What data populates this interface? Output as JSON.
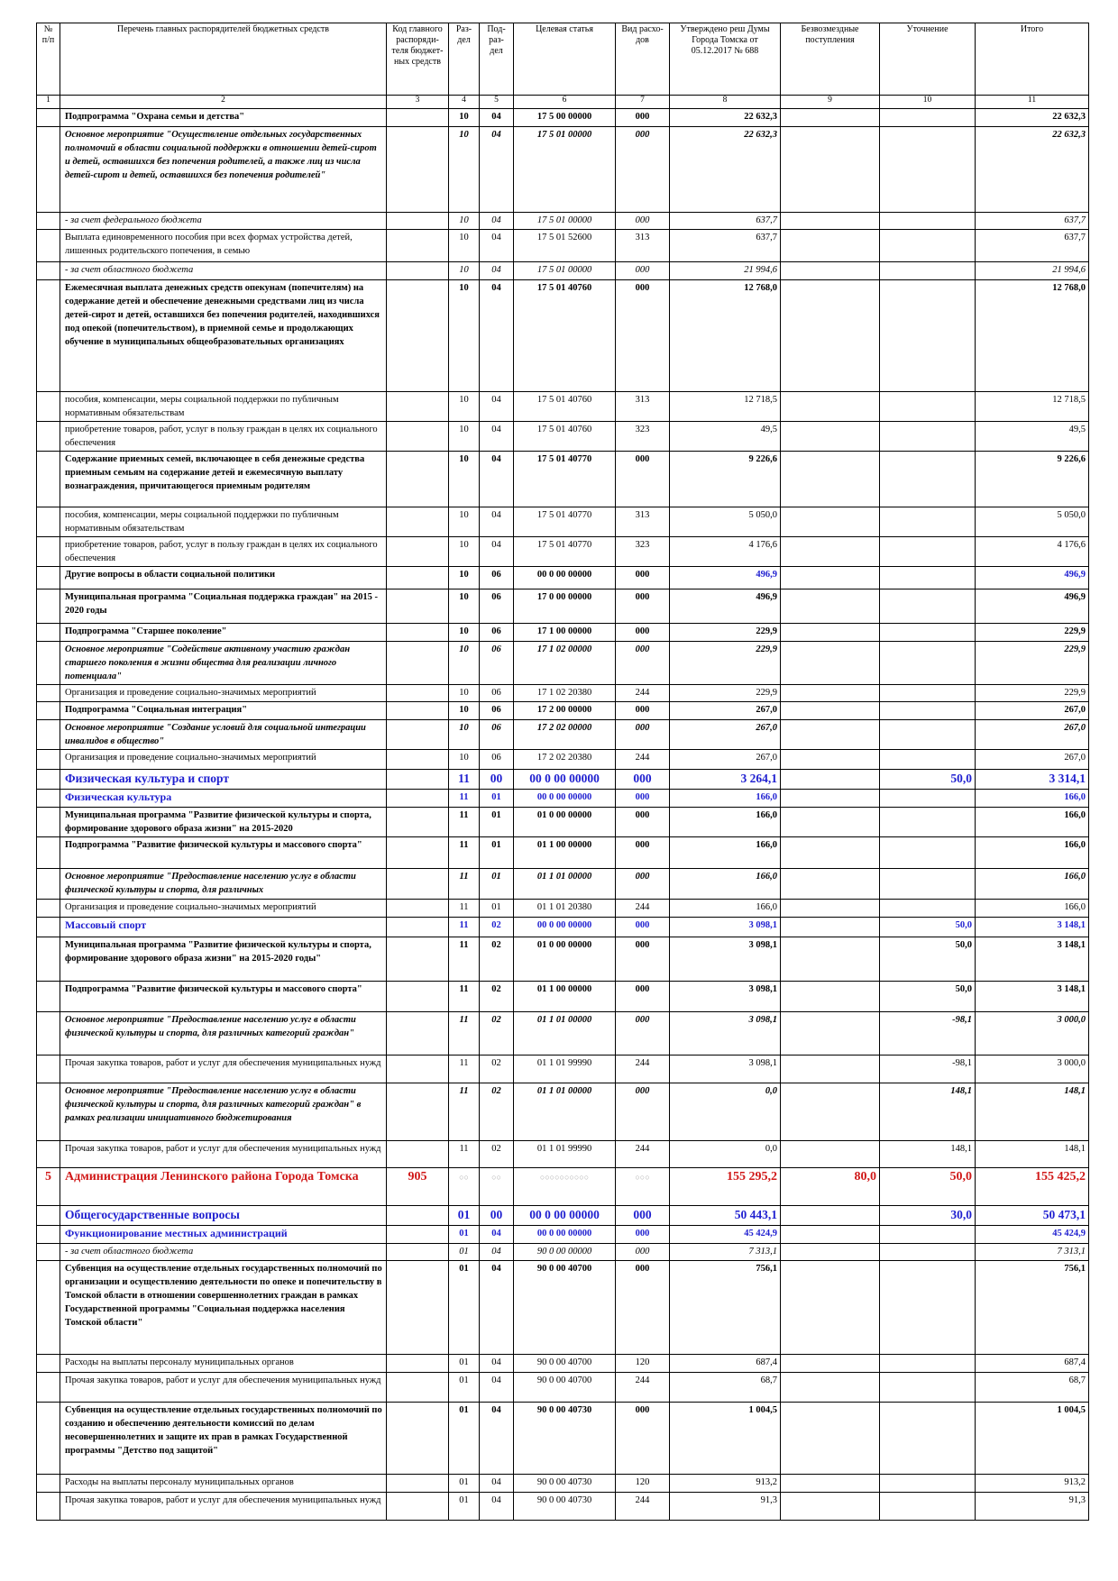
{
  "table": {
    "header": [
      "№ п/п",
      "Перечень главных распорядителей бюджетных средств",
      "Код главного распоряди-теля бюджет-ных средств",
      "Раз-дел",
      "Под-раз-дел",
      "Целевая статья",
      "Вид расхо-дов",
      "Утверждено реш Думы Города Томска от 05.12.2017 № 688",
      "Безвозмездные поступления",
      "Уточнение",
      "Итого"
    ],
    "numbers": [
      "1",
      "2",
      "3",
      "4",
      "5",
      "6",
      "7",
      "8",
      "9",
      "10",
      "11"
    ],
    "rows": [
      {
        "style": "b",
        "cells": [
          null,
          "Подпрограмма \"Охрана семьи и детства\"",
          null,
          "10",
          "04",
          "17 5 00 00000",
          "000",
          "22 632,3",
          null,
          null,
          "22 632,3"
        ]
      },
      {
        "style": "bi",
        "cells": [
          null,
          "Основное мероприятие \"Осуществление отдельных государственных полномочий в области социальной поддержки в отношении детей-сирот и детей, оставшихся без попечения родителей, а также лиц из числа детей-сирот и детей, оставшихся без попечения родителей\"",
          null,
          "10",
          "04",
          "17 5 01 00000",
          "000",
          "22 632,3",
          null,
          null,
          "22 632,3"
        ]
      },
      {
        "style": "i",
        "cells": [
          null,
          "- за счет федерального бюджета",
          null,
          "10",
          "04",
          "17 5 01 00000",
          "000",
          "637,7",
          null,
          null,
          "637,7"
        ]
      },
      {
        "style": "n",
        "cells": [
          null,
          "Выплата единовременного пособия при всех формах устройства детей, лишенных родительского попечения, в семью",
          null,
          "10",
          "04",
          "17 5 01 52600",
          "313",
          "637,7",
          null,
          null,
          "637,7"
        ]
      },
      {
        "style": "i",
        "cells": [
          null,
          "- за счет областного бюджета",
          null,
          "10",
          "04",
          "17 5 01 00000",
          "000",
          "21 994,6",
          null,
          null,
          "21 994,6"
        ]
      },
      {
        "style": "b",
        "cells": [
          null,
          "Ежемесячная выплата денежных средств опекунам (попечителям) на содержание детей и обеспечение денежными средствами лиц из числа детей-сирот и детей, оставшихся без попечения родителей, находившихся под опекой (попечительством), в приемной семье и продолжающих обучение в муниципальных общеобразовательных организациях",
          null,
          "10",
          "04",
          "17 5 01 40760",
          "000",
          "12 768,0",
          null,
          null,
          "12 768,0"
        ]
      },
      {
        "style": "n",
        "cells": [
          null,
          "пособия, компенсации, меры социальной поддержки по публичным нормативным обязательствам",
          null,
          "10",
          "04",
          "17 5 01 40760",
          "313",
          "12 718,5",
          null,
          null,
          "12 718,5"
        ]
      },
      {
        "style": "n",
        "cells": [
          null,
          "приобретение товаров, работ, услуг в пользу граждан в целях их социального обеспечения",
          null,
          "10",
          "04",
          "17 5 01 40760",
          "323",
          "49,5",
          null,
          null,
          "49,5"
        ]
      },
      {
        "style": "b",
        "cells": [
          null,
          "Содержание приемных семей, включающее в себя денежные средства приемным семьям на содержание детей и ежемесячную выплату вознаграждения, причитающегося приемным родителям",
          null,
          "10",
          "04",
          "17 5 01 40770",
          "000",
          "9 226,6",
          null,
          null,
          "9 226,6"
        ]
      },
      {
        "style": "n",
        "cells": [
          null,
          "пособия, компенсации, меры социальной поддержки по публичным нормативным обязательствам",
          null,
          "10",
          "04",
          "17 5 01 40770",
          "313",
          "5 050,0",
          null,
          null,
          "5 050,0"
        ]
      },
      {
        "style": "n",
        "cells": [
          null,
          "приобретение товаров, работ, услуг в пользу граждан в целях их социального обеспечения",
          null,
          "10",
          "04",
          "17 5 01 40770",
          "323",
          "4 176,6",
          null,
          null,
          "4 176,6"
        ]
      },
      {
        "style": "bv",
        "cells": [
          null,
          "Другие вопросы в области социальной политики",
          null,
          "10",
          "06",
          "00 0 00 00000",
          "000",
          "496,9",
          null,
          null,
          "496,9"
        ]
      },
      {
        "style": "b",
        "cells": [
          null,
          "Муниципальная программа \"Социальная поддержка граждан\" на 2015 - 2020 годы",
          null,
          "10",
          "06",
          "17 0 00 00000",
          "000",
          "496,9",
          null,
          null,
          "496,9"
        ]
      },
      {
        "style": "b",
        "cells": [
          null,
          "Подпрограмма \"Старшее поколение\"",
          null,
          "10",
          "06",
          "17 1 00 00000",
          "000",
          "229,9",
          null,
          null,
          "229,9"
        ]
      },
      {
        "style": "bi",
        "cells": [
          null,
          "Основное мероприятие \"Содействие активному участию граждан старшего поколения в жизни общества для реализации личного потенциала\"",
          null,
          "10",
          "06",
          "17 1 02 00000",
          "000",
          "229,9",
          null,
          null,
          "229,9"
        ]
      },
      {
        "style": "n",
        "cells": [
          null,
          "Организация и проведение социально-значимых мероприятий",
          null,
          "10",
          "06",
          "17 1 02 20380",
          "244",
          "229,9",
          null,
          null,
          "229,9"
        ]
      },
      {
        "style": "b",
        "cells": [
          null,
          "Подпрограмма \"Социальная интеграция\"",
          null,
          "10",
          "06",
          "17 2 00 00000",
          "000",
          "267,0",
          null,
          null,
          "267,0"
        ]
      },
      {
        "style": "bi",
        "cells": [
          null,
          "Основное мероприятие \"Создание условий для социальной интеграции инвалидов в общество\"",
          null,
          "10",
          "06",
          "17 2 02 00000",
          "000",
          "267,0",
          null,
          null,
          "267,0"
        ]
      },
      {
        "style": "n",
        "cells": [
          null,
          "Организация и проведение социально-значимых мероприятий",
          null,
          "10",
          "06",
          "17 2 02 20380",
          "244",
          "267,0",
          null,
          null,
          "267,0"
        ]
      },
      {
        "style": "blue-big",
        "cells": [
          null,
          "Физическая культура и спорт",
          null,
          "11",
          "00",
          "00 0 00 00000",
          "000",
          "3 264,1",
          null,
          "50,0",
          "3 314,1"
        ]
      },
      {
        "style": "blue",
        "cells": [
          null,
          "Физическая культура",
          null,
          "11",
          "01",
          "00 0 00 00000",
          "000",
          "166,0",
          null,
          null,
          "166,0"
        ]
      },
      {
        "style": "b",
        "cells": [
          null,
          "Муниципальная программа \"Развитие физической культуры и спорта, формирование здорового образа жизни\" на 2015-2020",
          null,
          "11",
          "01",
          "01 0 00 00000",
          "000",
          "166,0",
          null,
          null,
          "166,0"
        ]
      },
      {
        "style": "b",
        "cells": [
          null,
          "Подпрограмма \"Развитие физической культуры и массового спорта\"",
          null,
          "11",
          "01",
          "01 1 00 00000",
          "000",
          "166,0",
          null,
          null,
          "166,0"
        ]
      },
      {
        "style": "bi",
        "cells": [
          null,
          "Основное мероприятие \"Предоставление населению услуг в области физической культуры и спорта, для различных",
          null,
          "11",
          "01",
          "01 1 01 00000",
          "000",
          "166,0",
          null,
          null,
          "166,0"
        ]
      },
      {
        "style": "n",
        "cells": [
          null,
          "Организация и проведение социально-значимых мероприятий",
          null,
          "11",
          "01",
          "01 1 01 20380",
          "244",
          "166,0",
          null,
          null,
          "166,0"
        ]
      },
      {
        "style": "blue",
        "cells": [
          null,
          "Массовый спорт",
          null,
          "11",
          "02",
          "00 0 00 00000",
          "000",
          "3 098,1",
          null,
          "50,0",
          "3 148,1"
        ]
      },
      {
        "style": "b",
        "cells": [
          null,
          "Муниципальная программа \"Развитие физической культуры и спорта, формирование здорового образа жизни\" на 2015-2020 годы\"",
          null,
          "11",
          "02",
          "01 0 00 00000",
          "000",
          "3 098,1",
          null,
          "50,0",
          "3 148,1"
        ]
      },
      {
        "style": "b",
        "cells": [
          null,
          "Подпрограмма \"Развитие физической культуры и массового спорта\"",
          null,
          "11",
          "02",
          "01 1 00 00000",
          "000",
          "3 098,1",
          null,
          "50,0",
          "3 148,1"
        ]
      },
      {
        "style": "bi",
        "cells": [
          null,
          "Основное мероприятие \"Предоставление населению услуг в области физической культуры и спорта, для различных категорий граждан\"",
          null,
          "11",
          "02",
          "01 1 01 00000",
          "000",
          "3 098,1",
          null,
          "-98,1",
          "3 000,0"
        ]
      },
      {
        "style": "n",
        "cells": [
          null,
          "Прочая закупка товаров, работ и услуг для обеспечения муниципальных нужд",
          null,
          "11",
          "02",
          "01 1 01 99990",
          "244",
          "3 098,1",
          null,
          "-98,1",
          "3 000,0"
        ]
      },
      {
        "style": "bi",
        "cells": [
          null,
          "Основное мероприятие \"Предоставление населению услуг в области физической культуры и спорта, для различных категорий граждан\" в рамках реализации инициативного бюджетирования",
          null,
          "11",
          "02",
          "01 1 01 00000",
          "000",
          "0,0",
          null,
          "148,1",
          "148,1"
        ]
      },
      {
        "style": "n",
        "cells": [
          null,
          "Прочая закупка товаров, работ и услуг для обеспечения муниципальных нужд",
          null,
          "11",
          "02",
          "01 1 01 99990",
          "244",
          "0,0",
          null,
          "148,1",
          "148,1"
        ]
      },
      {
        "style": "red",
        "cells": [
          "5",
          "Администрация Ленинского района Города Томска",
          "905",
          "○○",
          "○○",
          "○○○○○○○○○○",
          "○○○",
          "155 295,2",
          "80,0",
          "50,0",
          "155 425,2"
        ]
      },
      {
        "style": "blue-big",
        "cells": [
          null,
          "Общегосударственные вопросы",
          null,
          "01",
          "00",
          "00 0 00 00000",
          "000",
          "50 443,1",
          null,
          "30,0",
          "50 473,1"
        ]
      },
      {
        "style": "blue",
        "cells": [
          null,
          "Функционирование местных администраций",
          null,
          "01",
          "04",
          "00 0 00 00000",
          "000",
          "45 424,9",
          null,
          null,
          "45 424,9"
        ]
      },
      {
        "style": "i",
        "cells": [
          null,
          "- за счет областного бюджета",
          null,
          "01",
          "04",
          "90 0 00 00000",
          "000",
          "7 313,1",
          null,
          null,
          "7 313,1"
        ]
      },
      {
        "style": "b",
        "cells": [
          null,
          "Субвенция на осуществление отдельных государственных полномочий по организации и осуществлению деятельности по опеке и попечительству в Томской области в отношении совершеннолетних граждан в рамках Государственной программы \"Социальная поддержка населения Томской области\"",
          null,
          "01",
          "04",
          "90 0 00 40700",
          "000",
          "756,1",
          null,
          null,
          "756,1"
        ]
      },
      {
        "style": "n",
        "cells": [
          null,
          "Расходы на выплаты персоналу муниципальных органов",
          null,
          "01",
          "04",
          "90 0 00 40700",
          "120",
          "687,4",
          null,
          null,
          "687,4"
        ]
      },
      {
        "style": "n",
        "cells": [
          null,
          "Прочая закупка товаров, работ и услуг для обеспечения муниципальных нужд",
          null,
          "01",
          "04",
          "90 0 00 40700",
          "244",
          "68,7",
          null,
          null,
          "68,7"
        ]
      },
      {
        "style": "b",
        "cells": [
          null,
          "Субвенция на осуществление отдельных государственных полномочий по созданию и обеспечению деятельности комиссий по делам несовершеннолетних и защите их прав в рамках Государственной программы \"Детство под защитой\"",
          null,
          "01",
          "04",
          "90 0 00 40730",
          "000",
          "1 004,5",
          null,
          null,
          "1 004,5"
        ]
      },
      {
        "style": "n",
        "cells": [
          null,
          "Расходы на выплаты персоналу муниципальных органов",
          null,
          "01",
          "04",
          "90 0 00 40730",
          "120",
          "913,2",
          null,
          null,
          "913,2"
        ]
      },
      {
        "style": "n",
        "cells": [
          null,
          "Прочая закупка товаров, работ и услуг для обеспечения муниципальных нужд",
          null,
          "01",
          "04",
          "90 0 00 40730",
          "244",
          "91,3",
          null,
          null,
          "91,3"
        ]
      }
    ]
  }
}
